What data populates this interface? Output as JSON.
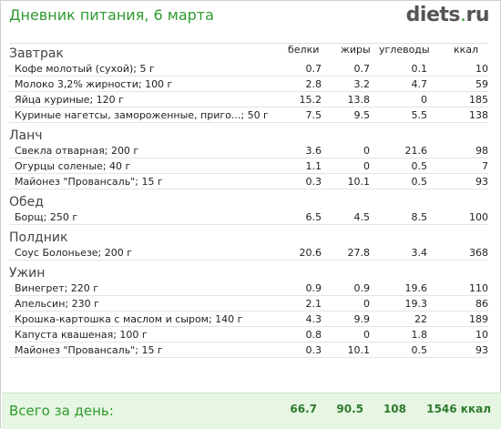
{
  "header": {
    "title": "Дневник питания, 6 марта",
    "logo_name": "diets",
    "logo_dot": ".",
    "logo_tld": "ru"
  },
  "columns": {
    "protein": "белки",
    "fat": "жиры",
    "carbs": "углеводы",
    "kcal": "ккал"
  },
  "meals": [
    {
      "name": "Завтрак",
      "items": [
        {
          "name": "Кофе молотый (сухой); 5 г",
          "protein": "0.7",
          "fat": "0.7",
          "carbs": "0.1",
          "kcal": "10"
        },
        {
          "name": "Молоко 3,2% жирности; 100 г",
          "protein": "2.8",
          "fat": "3.2",
          "carbs": "4.7",
          "kcal": "59"
        },
        {
          "name": "Яйца куриные; 120 г",
          "protein": "15.2",
          "fat": "13.8",
          "carbs": "0",
          "kcal": "185"
        },
        {
          "name": "Куриные нагетсы, замороженные, приго...; 50 г",
          "protein": "7.5",
          "fat": "9.5",
          "carbs": "5.5",
          "kcal": "138"
        }
      ]
    },
    {
      "name": "Ланч",
      "items": [
        {
          "name": "Свекла отварная; 200 г",
          "protein": "3.6",
          "fat": "0",
          "carbs": "21.6",
          "kcal": "98"
        },
        {
          "name": "Огурцы соленые; 40 г",
          "protein": "1.1",
          "fat": "0",
          "carbs": "0.5",
          "kcal": "7"
        },
        {
          "name": "Майонез \"Провансаль\"; 15 г",
          "protein": "0.3",
          "fat": "10.1",
          "carbs": "0.5",
          "kcal": "93"
        }
      ]
    },
    {
      "name": "Обед",
      "items": [
        {
          "name": "Борщ; 250 г",
          "protein": "6.5",
          "fat": "4.5",
          "carbs": "8.5",
          "kcal": "100"
        }
      ]
    },
    {
      "name": "Полдник",
      "items": [
        {
          "name": "Соус Болоньезе; 200 г",
          "protein": "20.6",
          "fat": "27.8",
          "carbs": "3.4",
          "kcal": "368"
        }
      ]
    },
    {
      "name": "Ужин",
      "items": [
        {
          "name": "Винегрет; 220 г",
          "protein": "0.9",
          "fat": "0.9",
          "carbs": "19.6",
          "kcal": "110"
        },
        {
          "name": "Апельсин; 230 г",
          "protein": "2.1",
          "fat": "0",
          "carbs": "19.3",
          "kcal": "86"
        },
        {
          "name": "Крошка-картошка с маслом и сыром; 140 г",
          "protein": "4.3",
          "fat": "9.9",
          "carbs": "22",
          "kcal": "189"
        },
        {
          "name": "Капуста квашеная; 100 г",
          "protein": "0.8",
          "fat": "0",
          "carbs": "1.8",
          "kcal": "10"
        },
        {
          "name": "Майонез \"Провансаль\"; 15 г",
          "protein": "0.3",
          "fat": "10.1",
          "carbs": "0.5",
          "kcal": "93"
        }
      ]
    }
  ],
  "total": {
    "label": "Всего за день:",
    "protein": "66.7",
    "fat": "90.5",
    "carbs": "108",
    "kcal": "1546 ккал"
  },
  "colors": {
    "accent": "#2e9a2e",
    "total_bg": "#e6f6e2"
  }
}
